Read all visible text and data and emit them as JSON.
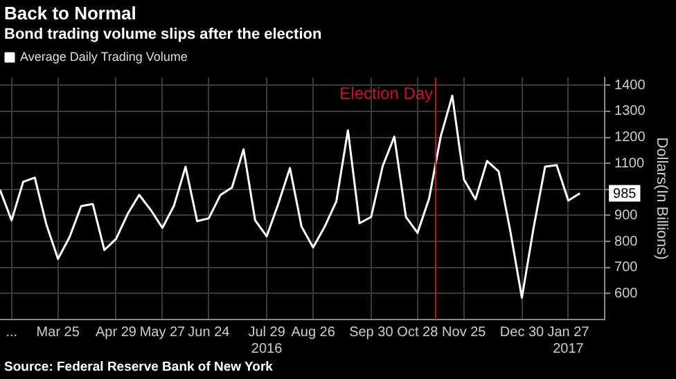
{
  "chart_data": {
    "type": "line",
    "title": "Back to Normal",
    "subtitle": "Bond trading volume slips after the election",
    "ylabel": "Dollars(In Billions)",
    "x": [
      "2016-02-19",
      "2016-02-26",
      "2016-03-04",
      "2016-03-11",
      "2016-03-18",
      "2016-03-25",
      "2016-04-01",
      "2016-04-08",
      "2016-04-15",
      "2016-04-22",
      "2016-04-29",
      "2016-05-06",
      "2016-05-13",
      "2016-05-20",
      "2016-05-27",
      "2016-06-03",
      "2016-06-10",
      "2016-06-17",
      "2016-06-24",
      "2016-07-01",
      "2016-07-08",
      "2016-07-15",
      "2016-07-22",
      "2016-07-29",
      "2016-08-05",
      "2016-08-12",
      "2016-08-19",
      "2016-08-26",
      "2016-09-02",
      "2016-09-09",
      "2016-09-16",
      "2016-09-23",
      "2016-09-30",
      "2016-10-07",
      "2016-10-14",
      "2016-10-21",
      "2016-10-28",
      "2016-11-04",
      "2016-11-11",
      "2016-11-18",
      "2016-11-25",
      "2016-12-02",
      "2016-12-09",
      "2016-12-16",
      "2016-12-23",
      "2016-12-30",
      "2017-01-06",
      "2017-01-13",
      "2017-01-20",
      "2017-01-27",
      "2017-02-03"
    ],
    "series": [
      {
        "name": "Average Daily Trading Volume",
        "color": "#ffffff",
        "values": [
          998,
          881,
          1029,
          1045,
          865,
          733,
          817,
          936,
          944,
          767,
          809,
          905,
          979,
          921,
          852,
          937,
          1087,
          878,
          889,
          978,
          1007,
          1154,
          881,
          820,
          945,
          1082,
          857,
          777,
          857,
          954,
          1227,
          870,
          894,
          1090,
          1203,
          894,
          833,
          965,
          1203,
          1360,
          1039,
          962,
          1109,
          1069,
          840,
          584,
          850,
          1087,
          1093,
          957,
          985
        ]
      }
    ],
    "xlim": [
      "2016-02-19",
      "2017-02-18"
    ],
    "xticks": [
      {
        "value": "2016-02-26",
        "label": "..."
      },
      {
        "value": "2016-03-25",
        "label": "Mar 25"
      },
      {
        "value": "2016-04-29",
        "label": "Apr 29"
      },
      {
        "value": "2016-05-27",
        "label": "May 27"
      },
      {
        "value": "2016-06-24",
        "label": "Jun 24"
      },
      {
        "value": "2016-07-29",
        "label": "Jul 29\n2016"
      },
      {
        "value": "2016-08-26",
        "label": "Aug 26"
      },
      {
        "value": "2016-09-30",
        "label": "Sep 30"
      },
      {
        "value": "2016-10-28",
        "label": "Oct 28"
      },
      {
        "value": "2016-11-25",
        "label": "Nov 25"
      },
      {
        "value": "2016-12-30",
        "label": "Dec 30"
      },
      {
        "value": "2017-01-27",
        "label": "Jan 27\n2017"
      }
    ],
    "ylim": [
      500,
      1430
    ],
    "yticks": [
      600,
      700,
      800,
      900,
      {
        "value": 1000,
        "label": null
      },
      1100,
      1200,
      1300,
      1400
    ],
    "ref_lines": [
      {
        "axis": "x",
        "value": "2016-11-08",
        "label": "Election Day",
        "color": "#c8102e"
      }
    ],
    "annotations": [
      {
        "text": "985",
        "x": "2017-02-03",
        "y": 985
      },
      "Source: Federal Reserve Bank of New York"
    ],
    "grid": true,
    "legend": "top left",
    "marker": "none",
    "line_style": "solid"
  }
}
